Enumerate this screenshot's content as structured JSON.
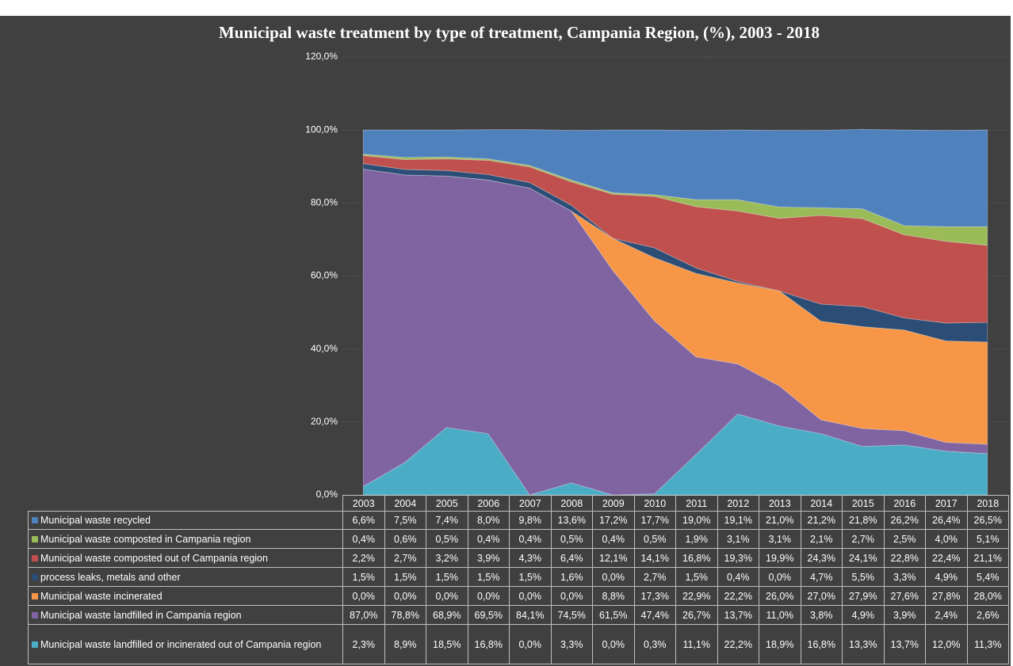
{
  "chart_data": {
    "type": "stacked_area",
    "title": "Municipal waste treatment by type of treatment, Campania Region, (%), 2003 - 2018",
    "categories": [
      "2003",
      "2004",
      "2005",
      "2006",
      "2007",
      "2008",
      "2009",
      "2010",
      "2011",
      "2012",
      "2013",
      "2014",
      "2015",
      "2016",
      "2017",
      "2018"
    ],
    "ylim": [
      0,
      120
    ],
    "yticks": [
      {
        "value": 0,
        "label": "0,0%"
      },
      {
        "value": 20,
        "label": "20,0%"
      },
      {
        "value": 40,
        "label": "40,0%"
      },
      {
        "value": 60,
        "label": "60,0%"
      },
      {
        "value": 80,
        "label": "80,0%"
      },
      {
        "value": 100,
        "label": "100,0%"
      },
      {
        "value": 120,
        "label": "120,0%"
      }
    ],
    "grid": true,
    "series": [
      {
        "name": "Municipal waste recycled",
        "color": "#4f81bd",
        "values": [
          6.6,
          7.5,
          7.4,
          8.0,
          9.8,
          13.6,
          17.2,
          17.7,
          19.0,
          19.1,
          21.0,
          21.2,
          21.8,
          26.2,
          26.4,
          26.5
        ],
        "value_labels": [
          "6,6%",
          "7,5%",
          "7,4%",
          "8,0%",
          "9,8%",
          "13,6%",
          "17,2%",
          "17,7%",
          "19,0%",
          "19,1%",
          "21,0%",
          "21,2%",
          "21,8%",
          "26,2%",
          "26,4%",
          "26,5%"
        ]
      },
      {
        "name": "Municipal waste composted in Campania region",
        "color": "#9bbb59",
        "values": [
          0.4,
          0.6,
          0.5,
          0.4,
          0.4,
          0.5,
          0.4,
          0.5,
          1.9,
          3.1,
          3.1,
          2.1,
          2.7,
          2.5,
          4.0,
          5.1
        ],
        "value_labels": [
          "0,4%",
          "0,6%",
          "0,5%",
          "0,4%",
          "0,4%",
          "0,5%",
          "0,4%",
          "0,5%",
          "1,9%",
          "3,1%",
          "3,1%",
          "2,1%",
          "2,7%",
          "2,5%",
          "4,0%",
          "5,1%"
        ]
      },
      {
        "name": "Municipal waste composted out of Campania region",
        "color": "#c0504d",
        "values": [
          2.2,
          2.7,
          3.2,
          3.9,
          4.3,
          6.4,
          12.1,
          14.1,
          16.8,
          19.3,
          19.9,
          24.3,
          24.1,
          22.8,
          22.4,
          21.1
        ],
        "value_labels": [
          "2,2%",
          "2,7%",
          "3,2%",
          "3,9%",
          "4,3%",
          "6,4%",
          "12,1%",
          "14,1%",
          "16,8%",
          "19,3%",
          "19,9%",
          "24,3%",
          "24,1%",
          "22,8%",
          "22,4%",
          "21,1%"
        ]
      },
      {
        "name": "process leaks, metals and other",
        "color": "#2c4d75",
        "values": [
          1.5,
          1.5,
          1.5,
          1.5,
          1.5,
          1.6,
          0.0,
          2.7,
          1.5,
          0.4,
          0.0,
          4.7,
          5.5,
          3.3,
          4.9,
          5.4
        ],
        "value_labels": [
          "1,5%",
          "1,5%",
          "1,5%",
          "1,5%",
          "1,5%",
          "1,6%",
          "0,0%",
          "2,7%",
          "1,5%",
          "0,4%",
          "0,0%",
          "4,7%",
          "5,5%",
          "3,3%",
          "4,9%",
          "5,4%"
        ]
      },
      {
        "name": "Municipal waste incinerated",
        "color": "#f79646",
        "values": [
          0.0,
          0.0,
          0.0,
          0.0,
          0.0,
          0.0,
          8.8,
          17.3,
          22.9,
          22.2,
          26.0,
          27.0,
          27.9,
          27.6,
          27.8,
          28.0
        ],
        "value_labels": [
          "0,0%",
          "0,0%",
          "0,0%",
          "0,0%",
          "0,0%",
          "0,0%",
          "8,8%",
          "17,3%",
          "22,9%",
          "22,2%",
          "26,0%",
          "27,0%",
          "27,9%",
          "27,6%",
          "27,8%",
          "28,0%"
        ]
      },
      {
        "name": "Municipal waste landfilled in Campania region",
        "color": "#8064a2",
        "values": [
          87.0,
          78.8,
          68.9,
          69.5,
          84.1,
          74.5,
          61.5,
          47.4,
          26.7,
          13.7,
          11.0,
          3.8,
          4.9,
          3.9,
          2.4,
          2.6
        ],
        "value_labels": [
          "87,0%",
          "78,8%",
          "68,9%",
          "69,5%",
          "84,1%",
          "74,5%",
          "61,5%",
          "47,4%",
          "26,7%",
          "13,7%",
          "11,0%",
          "3,8%",
          "4,9%",
          "3,9%",
          "2,4%",
          "2,6%"
        ]
      },
      {
        "name": "Municipal waste landfilled or incinerated out of Campania region",
        "color": "#4bacc6",
        "values": [
          2.3,
          8.9,
          18.5,
          16.8,
          0.0,
          3.3,
          0.0,
          0.3,
          11.1,
          22.2,
          18.9,
          16.8,
          13.3,
          13.7,
          12.0,
          11.3
        ],
        "value_labels": [
          "2,3%",
          "8,9%",
          "18,5%",
          "16,8%",
          "0,0%",
          "3,3%",
          "0,0%",
          "0,3%",
          "11,1%",
          "22,2%",
          "18,9%",
          "16,8%",
          "13,3%",
          "13,7%",
          "12,0%",
          "11,3%"
        ]
      }
    ]
  }
}
